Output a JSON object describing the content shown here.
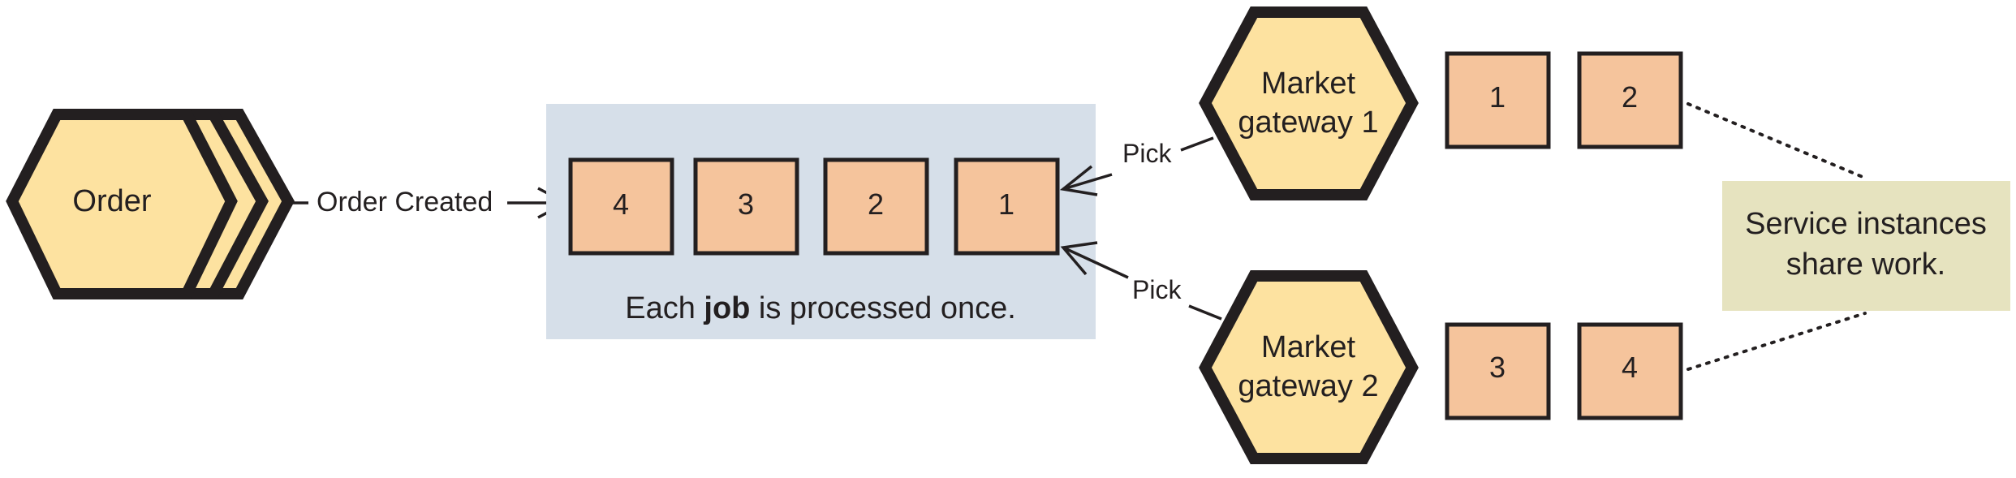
{
  "order_service": {
    "label": "Order"
  },
  "event": {
    "label": "Order Created"
  },
  "queue": {
    "jobs": [
      "4",
      "3",
      "2",
      "1"
    ],
    "caption_prefix": "Each ",
    "caption_bold": "job",
    "caption_suffix": " is processed once."
  },
  "pick_labels": [
    "Pick",
    "Pick"
  ],
  "gateways": [
    {
      "line1": "Market",
      "line2": "gateway 1",
      "jobs": [
        "1",
        "2"
      ]
    },
    {
      "line1": "Market",
      "line2": "gateway 2",
      "jobs": [
        "3",
        "4"
      ]
    }
  ],
  "note": {
    "line1": "Service instances",
    "line2": "share work."
  },
  "colors": {
    "hexagon": "#fde2a0",
    "job_box": "#f5c49c",
    "queue_panel": "#d6dfe9",
    "note": "#e6e3bf",
    "outline": "#231f20"
  }
}
